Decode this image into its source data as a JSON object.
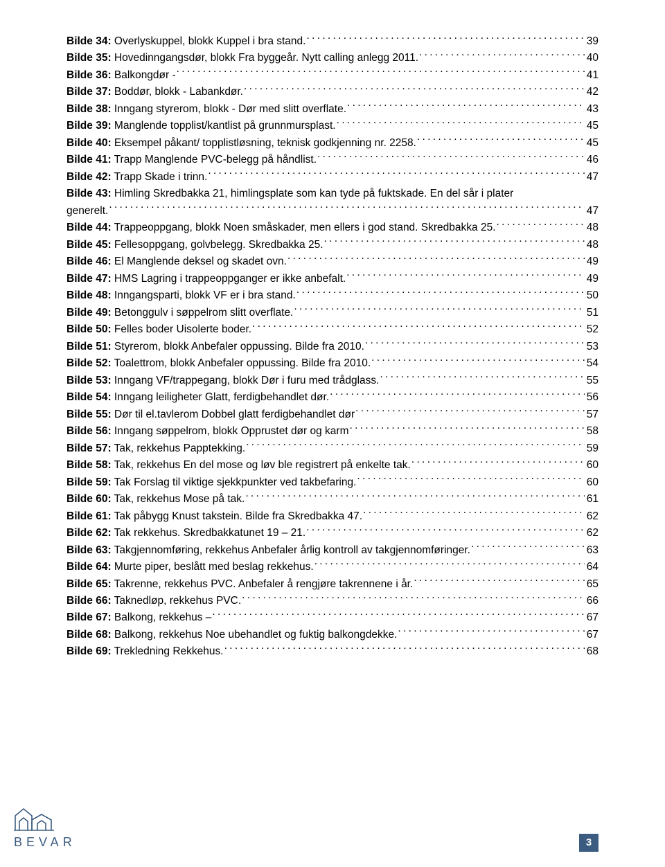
{
  "entries": [
    {
      "bold": "Bilde 34:",
      "text": " Overlyskuppel, blokk Kuppel i bra stand.",
      "page": "39"
    },
    {
      "bold": "Bilde 35:",
      "text": " Hovedinngangsdør, blokk Fra byggeår. Nytt calling anlegg 2011.",
      "page": "40"
    },
    {
      "bold": "Bilde 36:",
      "text": " Balkongdør -",
      "page": "41"
    },
    {
      "bold": "Bilde 37:",
      "text": " Boddør, blokk - Labankdør.",
      "page": "42"
    },
    {
      "bold": "Bilde 38:",
      "text": " Inngang styrerom, blokk - Dør med slitt overflate.",
      "page": "43"
    },
    {
      "bold": "Bilde 39:",
      "text": " Manglende topplist/kantlist på grunnmursplast.",
      "page": "45"
    },
    {
      "bold": "Bilde 40:",
      "text": " Eksempel påkant/ topplistløsning, teknisk godkjenning nr. 2258.",
      "page": "45"
    },
    {
      "bold": "Bilde 41:",
      "text": " Trapp Manglende PVC-belegg på håndlist.",
      "page": "46"
    },
    {
      "bold": "Bilde 42:",
      "text": " Trapp Skade i trinn.",
      "page": "47"
    },
    {
      "bold": "Bilde 43:",
      "text": " Himling Skredbakka 21, himlingsplate som kan tyde på fuktskade. En del sår i plater",
      "wrap": "generelt.",
      "page": "47"
    },
    {
      "bold": "Bilde 44:",
      "text": " Trappeoppgang, blokk Noen småskader, men ellers i god stand. Skredbakka 25.",
      "page": "48"
    },
    {
      "bold": "Bilde 45:",
      "text": " Fellesoppgang, golvbelegg. Skredbakka 25.",
      "page": "48"
    },
    {
      "bold": "Bilde 46:",
      "text": " El Manglende deksel og skadet ovn.",
      "page": "49"
    },
    {
      "bold": "Bilde 47:",
      "text": " HMS Lagring i trappeoppganger er ikke anbefalt.",
      "page": "49"
    },
    {
      "bold": "Bilde 48:",
      "text": " Inngangsparti, blokk VF er i bra stand.",
      "page": "50"
    },
    {
      "bold": "Bilde 49:",
      "text": " Betonggulv i søppelrom slitt overflate.",
      "page": "51"
    },
    {
      "bold": "Bilde 50:",
      "text": " Felles boder Uisolerte boder.",
      "page": "52"
    },
    {
      "bold": "Bilde 51:",
      "text": " Styrerom, blokk Anbefaler oppussing. Bilde fra 2010.",
      "page": "53"
    },
    {
      "bold": "Bilde 52:",
      "text": " Toalettrom, blokk Anbefaler oppussing. Bilde fra 2010.",
      "page": "54"
    },
    {
      "bold": "Bilde 53:",
      "text": " Inngang VF/trappegang, blokk Dør i furu med trådglass.",
      "page": "55"
    },
    {
      "bold": "Bilde 54:",
      "text": " Inngang leiligheter Glatt, ferdigbehandlet dør.",
      "page": "56"
    },
    {
      "bold": "Bilde 55:",
      "text": " Dør til el.tavlerom Dobbel glatt ferdigbehandlet dør",
      "page": "57"
    },
    {
      "bold": "Bilde 56:",
      "text": " Inngang søppelrom, blokk Opprustet dør og karm",
      "page": "58"
    },
    {
      "bold": "Bilde 57:",
      "text": " Tak, rekkehus Papptekking.",
      "page": "59"
    },
    {
      "bold": "Bilde 58:",
      "text": " Tak, rekkehus En del mose og løv ble registrert på enkelte tak.",
      "page": "60"
    },
    {
      "bold": "Bilde 59:",
      "text": " Tak Forslag til viktige sjekkpunkter ved takbefaring.",
      "page": "60"
    },
    {
      "bold": "Bilde 60:",
      "text": " Tak, rekkehus Mose på tak.",
      "page": "61"
    },
    {
      "bold": "Bilde 61:",
      "text": " Tak påbygg Knust takstein. Bilde fra Skredbakka 47.",
      "page": "62"
    },
    {
      "bold": "Bilde 62:",
      "text": " Tak rekkehus. Skredbakkatunet 19 – 21.",
      "page": "62"
    },
    {
      "bold": "Bilde 63:",
      "text": " Takgjennomføring, rekkehus Anbefaler årlig kontroll av takgjennomføringer.",
      "page": "63"
    },
    {
      "bold": "Bilde 64:",
      "text": " Murte piper, beslått med beslag rekkehus.",
      "page": "64"
    },
    {
      "bold": "Bilde 65:",
      "text": " Takrenne, rekkehus PVC. Anbefaler å rengjøre takrennene i år.",
      "page": "65"
    },
    {
      "bold": "Bilde 66:",
      "text": " Taknedløp, rekkehus PVC.",
      "page": "66"
    },
    {
      "bold": "Bilde 67:",
      "text": " Balkong, rekkehus –",
      "page": "67"
    },
    {
      "bold": "Bilde 68:",
      "text": " Balkong, rekkehus Noe ubehandlet og fuktig balkongdekke.",
      "page": "67"
    },
    {
      "bold": "Bilde 69:",
      "text": " Trekledning Rekkehus.",
      "page": "68"
    }
  ],
  "footer": {
    "logo_text": "BEVAR",
    "page_number": "3",
    "accent_color": "#3b5b80"
  }
}
